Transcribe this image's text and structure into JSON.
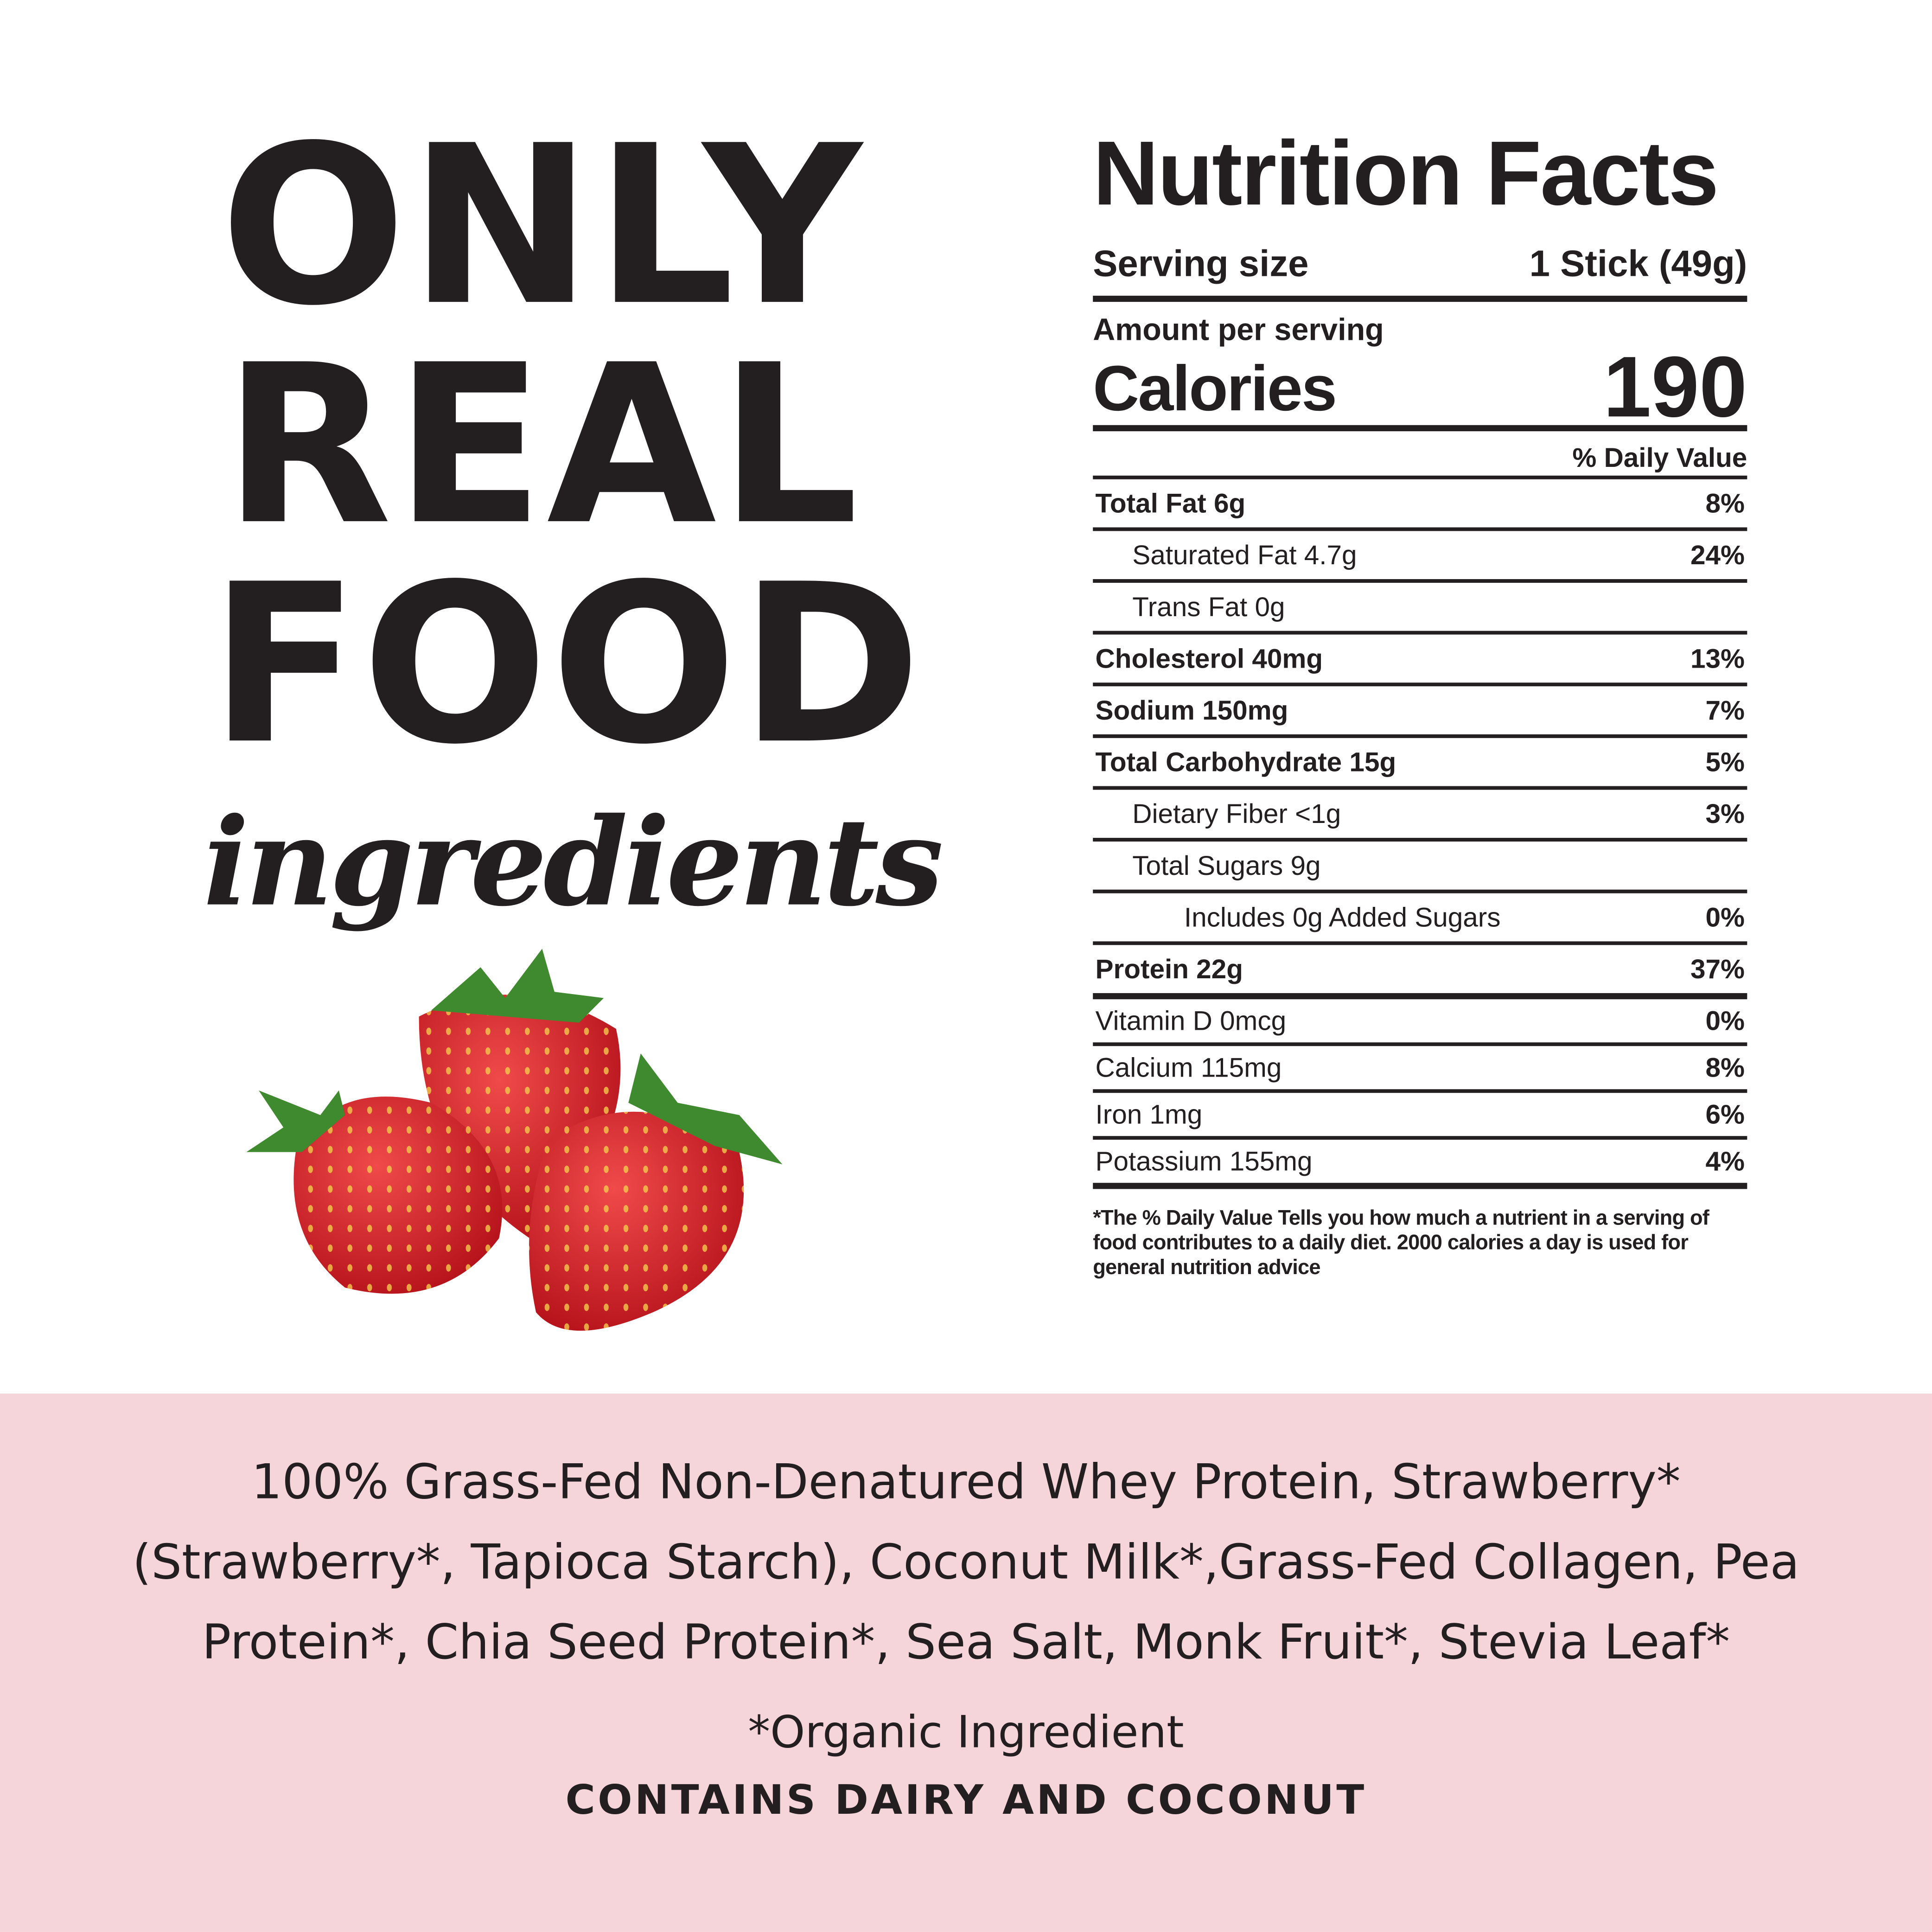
{
  "headline": {
    "line1": "ONLY",
    "line2": "REAL",
    "line3": "FOOD",
    "line4": "ingredients"
  },
  "nutrition": {
    "title": "Nutrition Facts",
    "serving_label": "Serving size",
    "serving_value": "1 Stick (49g)",
    "amount_label": "Amount per serving",
    "calories_label": "Calories",
    "calories_value": "190",
    "dv_header": "% Daily Value",
    "rows": [
      {
        "name": "Total Fat 6g",
        "dv": "8%"
      },
      {
        "name": "Saturated Fat 4.7g",
        "dv": "24%"
      },
      {
        "name": "Trans Fat 0g",
        "dv": ""
      },
      {
        "name": "Cholesterol 40mg",
        "dv": "13%"
      },
      {
        "name": "Sodium 150mg",
        "dv": "7%"
      },
      {
        "name": "Total Carbohydrate 15g",
        "dv": "5%"
      },
      {
        "name": "Dietary Fiber <1g",
        "dv": "3%"
      },
      {
        "name": "Total Sugars 9g",
        "dv": ""
      },
      {
        "name": "Includes 0g Added Sugars",
        "dv": "0%"
      },
      {
        "name": "Protein 22g",
        "dv": "37%"
      },
      {
        "name": "Vitamin D 0mcg",
        "dv": "0%"
      },
      {
        "name": "Calcium 115mg",
        "dv": "8%"
      },
      {
        "name": "Iron 1mg",
        "dv": "6%"
      },
      {
        "name": "Potassium 155mg",
        "dv": "4%"
      }
    ],
    "footnote": "*The % Daily Value Tells you how much a nutrient in a serving of food contributes to a daily diet. 2000 calories a day is used for general nutrition advice"
  },
  "ingredients": {
    "line1": "100% Grass-Fed Non-Denatured Whey Protein, Strawberry*",
    "line2": "(Strawberry*, Tapioca Starch), Coconut Milk*,Grass-Fed Collagen, Pea",
    "line3": "Protein*, Chia Seed Protein*, Sea Salt, Monk Fruit*, Stevia Leaf*",
    "organic_note": "*Organic Ingredient",
    "allergens": "CONTAINS DAIRY AND COCONUT"
  },
  "colors": {
    "text": "#231f20",
    "band": "#f5d5da",
    "berry": "#d8232a",
    "leaf": "#3f8a2e"
  }
}
